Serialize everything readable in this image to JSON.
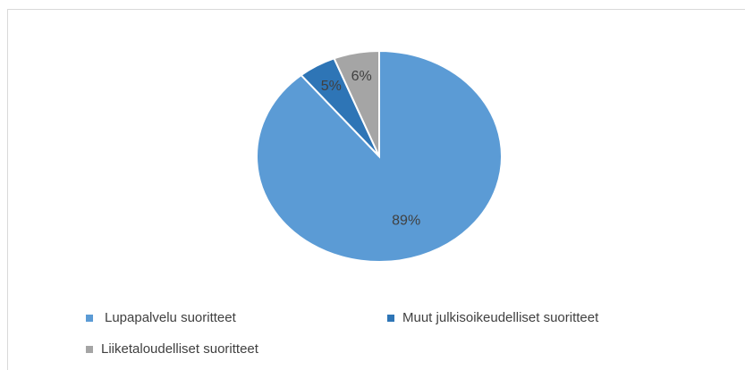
{
  "chart_data": {
    "type": "pie",
    "categories": [
      "Lupapalvelu suoritteet",
      "Muut julkisoikeudelliset suoritteet",
      "Liiketaloudelliset suoritteet"
    ],
    "values": [
      89,
      5,
      6
    ],
    "value_labels": [
      "89%",
      "5%",
      "6%"
    ],
    "colors": [
      "#5b9bd5",
      "#2e75b6",
      "#a5a5a5"
    ]
  }
}
